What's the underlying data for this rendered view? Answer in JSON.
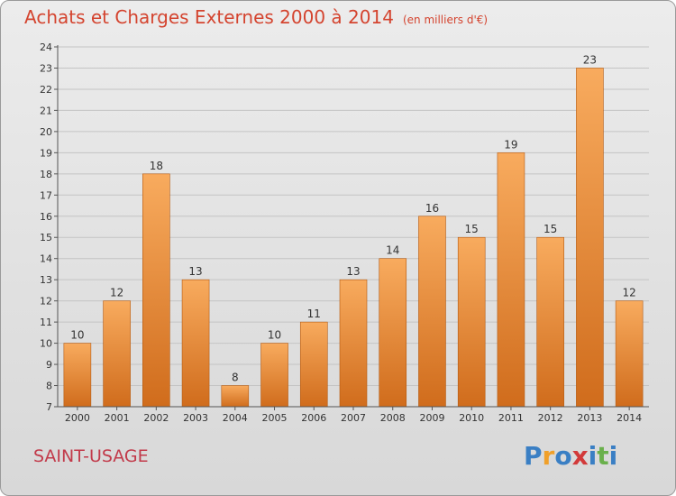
{
  "header": {
    "title": "Achats et Charges Externes 2000 à 2014",
    "unit": "(en milliers d'€)"
  },
  "footer": {
    "commune": "SAINT-USAGE",
    "logo_text": "Proxiti"
  },
  "colors": {
    "title": "#d4442f",
    "commune": "#c23a4a",
    "bar_light": "#f6a65a",
    "bar_dark": "#d06c1c"
  },
  "chart_data": {
    "type": "bar",
    "title": "Achats et Charges Externes 2000 à 2014",
    "xlabel": "",
    "ylabel": "",
    "categories": [
      "2000",
      "2001",
      "2002",
      "2003",
      "2004",
      "2005",
      "2006",
      "2007",
      "2008",
      "2009",
      "2010",
      "2011",
      "2012",
      "2013",
      "2014"
    ],
    "values": [
      10,
      12,
      18,
      13,
      8,
      10,
      11,
      13,
      14,
      16,
      15,
      19,
      15,
      23,
      12
    ],
    "ylim": [
      7,
      24
    ],
    "yticks": [
      7,
      8,
      9,
      10,
      11,
      12,
      13,
      14,
      15,
      16,
      17,
      18,
      19,
      20,
      21,
      22,
      23,
      24
    ],
    "grid": true,
    "data_labels": true
  }
}
